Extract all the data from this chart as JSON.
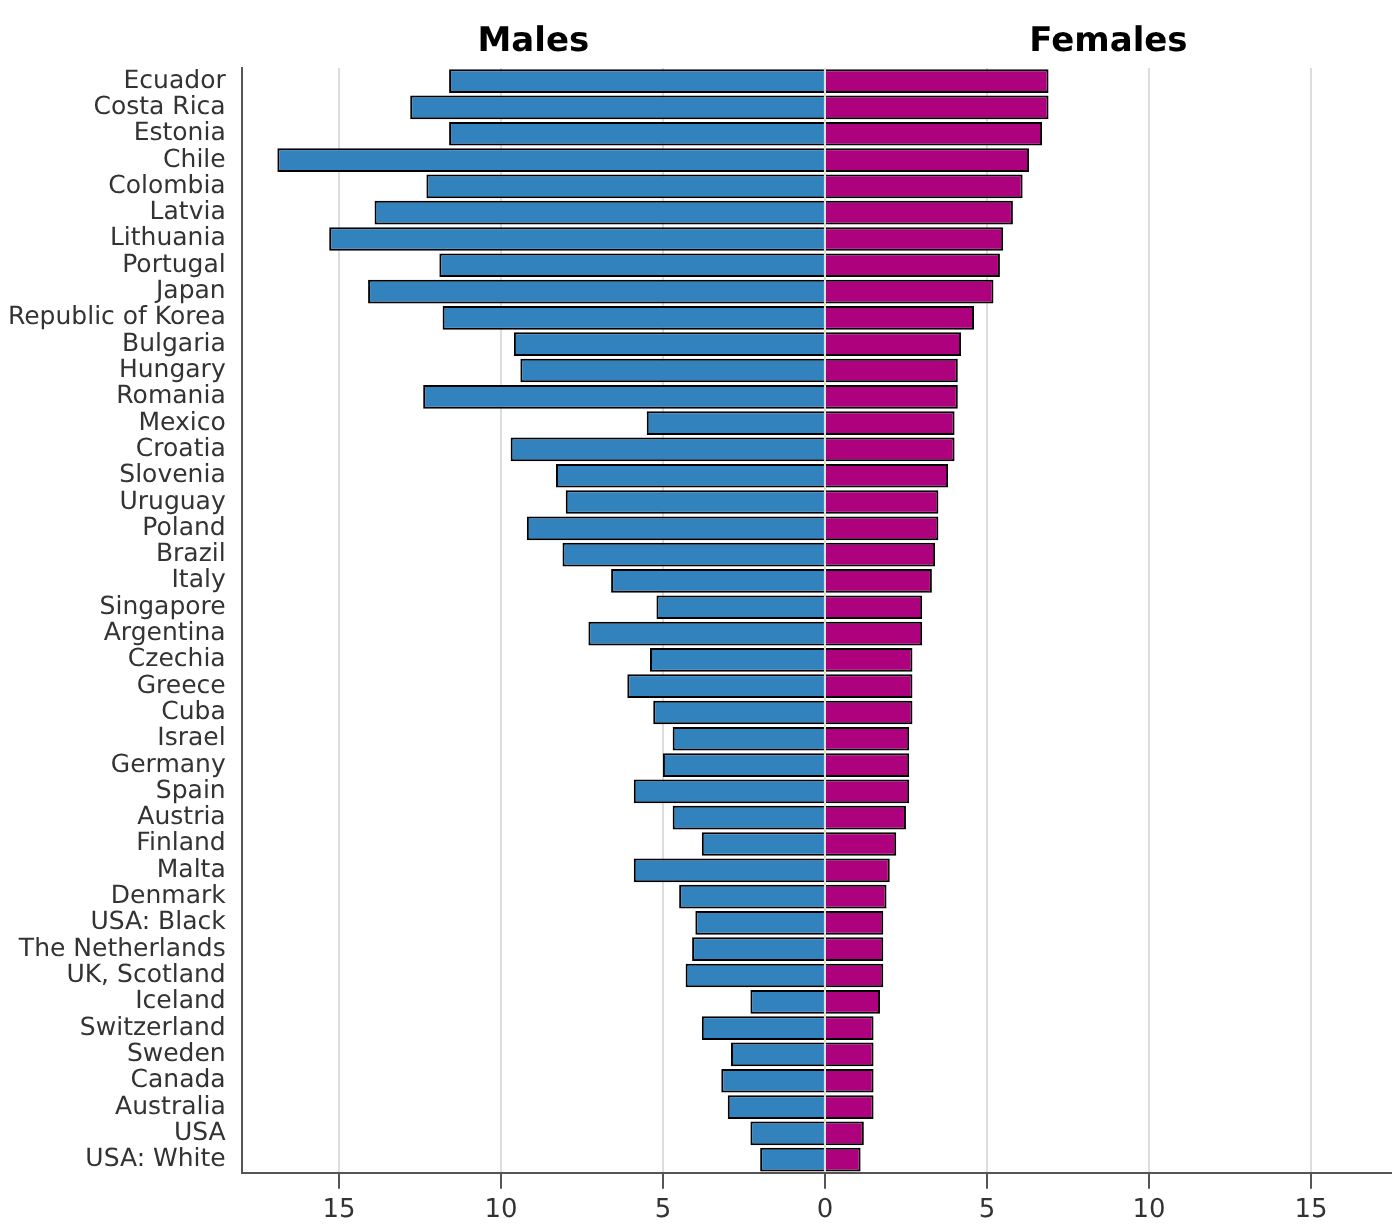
{
  "chart_data": {
    "type": "bar",
    "orientation": "horizontal",
    "stacked": true,
    "grid": "x",
    "legend": false,
    "categories": [
      "Ecuador",
      "Costa Rica",
      "Estonia",
      "Chile",
      "Colombia",
      "Latvia",
      "Lithuania",
      "Portugal",
      "Japan",
      "Republic of Korea",
      "Bulgaria",
      "Hungary",
      "Romania",
      "Mexico",
      "Croatia",
      "Slovenia",
      "Uruguay",
      "Poland",
      "Brazil",
      "Italy",
      "Singapore",
      "Argentina",
      "Czechia",
      "Greece",
      "Cuba",
      "Israel",
      "Germany",
      "Spain",
      "Austria",
      "Finland",
      "Malta",
      "Denmark",
      "USA: Black",
      "The Netherlands",
      "UK, Scotland",
      "Iceland",
      "Switzerland",
      "Sweden",
      "Canada",
      "Australia",
      "USA",
      "USA: White"
    ],
    "series": [
      {
        "name": "Males",
        "color": "#3182bd",
        "values": [
          -11.6,
          -12.8,
          -11.6,
          -16.9,
          -12.3,
          -13.9,
          -15.3,
          -11.9,
          -14.1,
          -11.8,
          -9.6,
          -9.4,
          -12.4,
          -5.5,
          -9.7,
          -8.3,
          -8.0,
          -9.2,
          -8.1,
          -6.6,
          -5.2,
          -7.3,
          -5.4,
          -6.1,
          -5.3,
          -4.7,
          -5.0,
          -5.9,
          -4.7,
          -3.8,
          -5.9,
          -4.5,
          -4.0,
          -4.1,
          -4.3,
          -2.3,
          -3.8,
          -2.9,
          -3.2,
          -3.0,
          -2.3,
          -2.0
        ]
      },
      {
        "name": "Females",
        "color": "#ae017e",
        "values": [
          6.9,
          6.9,
          6.7,
          6.3,
          6.1,
          5.8,
          5.5,
          5.4,
          5.2,
          4.6,
          4.2,
          4.1,
          4.1,
          4.0,
          4.0,
          3.8,
          3.5,
          3.5,
          3.4,
          3.3,
          3.0,
          3.0,
          2.7,
          2.7,
          2.7,
          2.6,
          2.6,
          2.6,
          2.5,
          2.2,
          2.0,
          1.9,
          1.8,
          1.8,
          1.8,
          1.7,
          1.5,
          1.5,
          1.5,
          1.5,
          1.2,
          1.1
        ]
      }
    ],
    "xlim": [
      -18,
      17.5
    ],
    "xticks": [
      {
        "value": -15,
        "label": "15"
      },
      {
        "value": -10,
        "label": "10"
      },
      {
        "value": -5,
        "label": "5"
      },
      0,
      5,
      10,
      15
    ]
  }
}
